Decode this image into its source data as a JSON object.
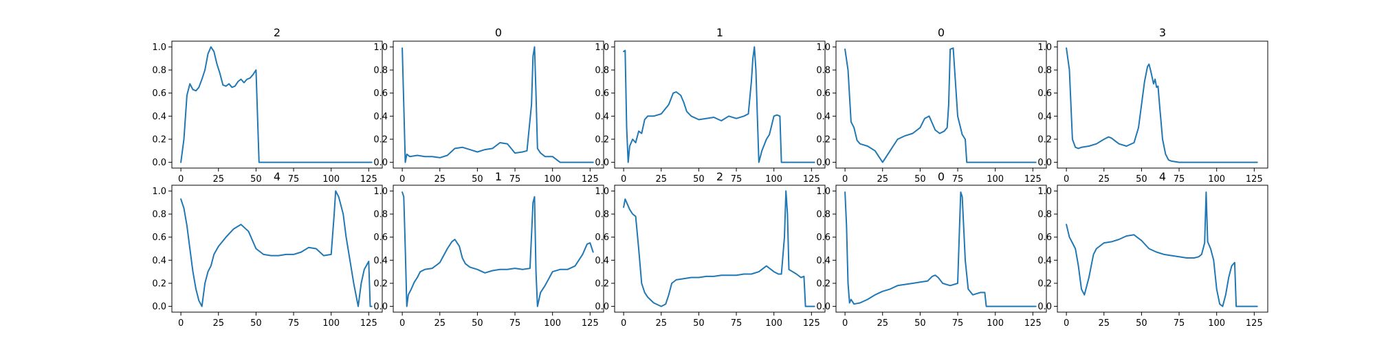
{
  "figure": {
    "line_color": "#1f77b4",
    "background": "#ffffff"
  },
  "chart_data": [
    {
      "type": "line",
      "title": "2",
      "xlim": [
        -6,
        134
      ],
      "ylim": [
        -0.05,
        1.05
      ],
      "xticks": [
        0,
        25,
        50,
        75,
        100,
        125
      ],
      "yticks": [
        0.0,
        0.2,
        0.4,
        0.6,
        0.8,
        1.0
      ],
      "x": [
        0,
        2,
        4,
        6,
        8,
        10,
        12,
        14,
        16,
        18,
        20,
        22,
        24,
        26,
        28,
        30,
        32,
        34,
        36,
        38,
        40,
        42,
        44,
        46,
        48,
        50,
        52,
        53,
        60,
        80,
        100,
        127
      ],
      "y": [
        0.0,
        0.2,
        0.58,
        0.68,
        0.63,
        0.62,
        0.65,
        0.72,
        0.8,
        0.94,
        1.0,
        0.96,
        0.85,
        0.77,
        0.67,
        0.66,
        0.68,
        0.65,
        0.66,
        0.7,
        0.72,
        0.69,
        0.72,
        0.73,
        0.76,
        0.8,
        0.0,
        0.0,
        0.0,
        0.0,
        0.0,
        0.0
      ]
    },
    {
      "type": "line",
      "title": "0",
      "xlim": [
        -6,
        134
      ],
      "ylim": [
        -0.05,
        1.05
      ],
      "xticks": [
        0,
        25,
        50,
        75,
        100,
        125
      ],
      "yticks": [
        0.0,
        0.2,
        0.4,
        0.6,
        0.8,
        1.0
      ],
      "x": [
        0,
        1,
        2,
        3,
        5,
        10,
        15,
        20,
        25,
        30,
        35,
        40,
        45,
        50,
        55,
        60,
        65,
        70,
        75,
        80,
        83,
        86,
        87,
        88,
        89,
        90,
        92,
        95,
        100,
        103,
        105,
        110,
        120,
        127
      ],
      "y": [
        0.99,
        0.5,
        0.0,
        0.07,
        0.05,
        0.06,
        0.05,
        0.05,
        0.04,
        0.06,
        0.12,
        0.13,
        0.11,
        0.09,
        0.11,
        0.12,
        0.17,
        0.16,
        0.08,
        0.09,
        0.1,
        0.5,
        0.92,
        1.0,
        0.6,
        0.12,
        0.08,
        0.05,
        0.05,
        0.02,
        0.0,
        0.0,
        0.0,
        0.0
      ]
    },
    {
      "type": "line",
      "title": "1",
      "xlim": [
        -6,
        134
      ],
      "ylim": [
        -0.05,
        1.05
      ],
      "xticks": [
        0,
        25,
        50,
        75,
        100,
        125
      ],
      "yticks": [
        0.0,
        0.2,
        0.4,
        0.6,
        0.8,
        1.0
      ],
      "x": [
        0,
        1,
        2,
        3,
        4,
        6,
        8,
        10,
        12,
        14,
        16,
        20,
        25,
        30,
        33,
        35,
        38,
        40,
        42,
        45,
        50,
        55,
        60,
        65,
        70,
        75,
        80,
        83,
        85,
        86,
        87,
        88,
        89,
        90,
        92,
        95,
        97,
        100,
        102,
        104,
        105,
        110,
        120,
        127
      ],
      "y": [
        0.96,
        0.97,
        0.3,
        0.0,
        0.14,
        0.2,
        0.17,
        0.27,
        0.25,
        0.37,
        0.4,
        0.4,
        0.42,
        0.5,
        0.6,
        0.61,
        0.58,
        0.52,
        0.44,
        0.4,
        0.37,
        0.38,
        0.39,
        0.36,
        0.4,
        0.38,
        0.4,
        0.42,
        0.7,
        0.9,
        1.0,
        0.8,
        0.4,
        0.0,
        0.1,
        0.2,
        0.24,
        0.4,
        0.41,
        0.4,
        0.0,
        0.0,
        0.0,
        0.0
      ]
    },
    {
      "type": "line",
      "title": "0",
      "xlim": [
        -6,
        134
      ],
      "ylim": [
        -0.05,
        1.05
      ],
      "xticks": [
        0,
        25,
        50,
        75,
        100,
        125
      ],
      "yticks": [
        0.0,
        0.2,
        0.4,
        0.6,
        0.8,
        1.0
      ],
      "x": [
        0,
        2,
        4,
        6,
        8,
        10,
        15,
        20,
        23,
        25,
        27,
        30,
        35,
        40,
        45,
        50,
        53,
        56,
        60,
        63,
        66,
        68,
        69,
        70,
        72,
        75,
        78,
        80,
        81,
        90,
        100,
        110,
        127
      ],
      "y": [
        0.98,
        0.8,
        0.35,
        0.3,
        0.19,
        0.16,
        0.14,
        0.1,
        0.04,
        0.0,
        0.04,
        0.1,
        0.2,
        0.23,
        0.25,
        0.3,
        0.38,
        0.4,
        0.28,
        0.25,
        0.27,
        0.3,
        0.5,
        0.98,
        0.99,
        0.4,
        0.24,
        0.2,
        0.0,
        0.0,
        0.0,
        0.0,
        0.0
      ]
    },
    {
      "type": "line",
      "title": "3",
      "xlim": [
        -6,
        134
      ],
      "ylim": [
        -0.05,
        1.05
      ],
      "xticks": [
        0,
        25,
        50,
        75,
        100,
        125
      ],
      "yticks": [
        0.0,
        0.2,
        0.4,
        0.6,
        0.8,
        1.0
      ],
      "x": [
        0,
        2,
        4,
        6,
        8,
        10,
        15,
        20,
        25,
        28,
        30,
        35,
        40,
        45,
        48,
        50,
        52,
        54,
        55,
        56,
        58,
        59,
        60,
        61,
        62,
        64,
        66,
        68,
        70,
        75,
        80,
        100,
        127
      ],
      "y": [
        0.99,
        0.8,
        0.2,
        0.13,
        0.12,
        0.13,
        0.14,
        0.16,
        0.2,
        0.22,
        0.21,
        0.16,
        0.14,
        0.17,
        0.3,
        0.5,
        0.7,
        0.83,
        0.85,
        0.8,
        0.68,
        0.72,
        0.65,
        0.66,
        0.5,
        0.2,
        0.07,
        0.02,
        0.01,
        0.0,
        0.0,
        0.0,
        0.0
      ]
    },
    {
      "type": "line",
      "title": "4",
      "xlim": [
        -6,
        134
      ],
      "ylim": [
        -0.05,
        1.05
      ],
      "xticks": [
        0,
        25,
        50,
        75,
        100,
        125
      ],
      "yticks": [
        0.0,
        0.2,
        0.4,
        0.6,
        0.8,
        1.0
      ],
      "x": [
        0,
        2,
        4,
        6,
        8,
        10,
        12,
        14,
        16,
        18,
        20,
        22,
        25,
        30,
        35,
        40,
        45,
        50,
        55,
        60,
        65,
        70,
        75,
        80,
        85,
        90,
        95,
        100,
        102,
        103,
        105,
        108,
        110,
        115,
        118,
        120,
        122,
        125,
        126,
        127
      ],
      "y": [
        0.93,
        0.85,
        0.7,
        0.5,
        0.3,
        0.15,
        0.05,
        0.0,
        0.2,
        0.3,
        0.35,
        0.45,
        0.52,
        0.6,
        0.67,
        0.71,
        0.65,
        0.5,
        0.45,
        0.44,
        0.44,
        0.45,
        0.45,
        0.47,
        0.51,
        0.5,
        0.44,
        0.45,
        0.8,
        1.0,
        0.95,
        0.8,
        0.6,
        0.2,
        0.0,
        0.2,
        0.32,
        0.39,
        0.0,
        0.0
      ]
    },
    {
      "type": "line",
      "title": "1",
      "xlim": [
        -6,
        134
      ],
      "ylim": [
        -0.05,
        1.05
      ],
      "xticks": [
        0,
        25,
        50,
        75,
        100,
        125
      ],
      "yticks": [
        0.0,
        0.2,
        0.4,
        0.6,
        0.8,
        1.0
      ],
      "x": [
        0,
        1,
        2,
        3,
        4,
        6,
        8,
        10,
        12,
        15,
        20,
        25,
        30,
        33,
        35,
        38,
        40,
        42,
        45,
        50,
        55,
        60,
        65,
        70,
        75,
        80,
        85,
        87,
        88,
        89,
        90,
        92,
        95,
        100,
        105,
        110,
        115,
        120,
        123,
        125,
        127
      ],
      "y": [
        0.99,
        0.95,
        0.5,
        0.0,
        0.1,
        0.15,
        0.21,
        0.25,
        0.3,
        0.32,
        0.33,
        0.38,
        0.5,
        0.56,
        0.58,
        0.52,
        0.42,
        0.37,
        0.34,
        0.32,
        0.29,
        0.31,
        0.32,
        0.32,
        0.33,
        0.32,
        0.33,
        0.9,
        0.95,
        0.3,
        0.0,
        0.12,
        0.18,
        0.3,
        0.32,
        0.32,
        0.35,
        0.45,
        0.54,
        0.55,
        0.47
      ]
    },
    {
      "type": "line",
      "title": "2",
      "xlim": [
        -6,
        134
      ],
      "ylim": [
        -0.05,
        1.05
      ],
      "xticks": [
        0,
        25,
        50,
        75,
        100,
        125
      ],
      "yticks": [
        0.0,
        0.2,
        0.4,
        0.6,
        0.8,
        1.0
      ],
      "x": [
        0,
        1,
        2,
        4,
        6,
        8,
        10,
        12,
        14,
        16,
        20,
        25,
        28,
        30,
        32,
        35,
        40,
        45,
        50,
        55,
        60,
        65,
        70,
        75,
        80,
        85,
        90,
        95,
        100,
        103,
        105,
        107,
        108,
        109,
        110,
        115,
        118,
        120,
        121,
        125,
        127
      ],
      "y": [
        0.86,
        0.93,
        0.9,
        0.84,
        0.8,
        0.78,
        0.5,
        0.2,
        0.12,
        0.08,
        0.03,
        0.0,
        0.02,
        0.1,
        0.2,
        0.23,
        0.24,
        0.25,
        0.25,
        0.26,
        0.26,
        0.27,
        0.27,
        0.27,
        0.28,
        0.28,
        0.3,
        0.35,
        0.3,
        0.28,
        0.28,
        0.6,
        1.0,
        0.8,
        0.32,
        0.28,
        0.25,
        0.26,
        0.0,
        0.0,
        0.0
      ]
    },
    {
      "type": "line",
      "title": "0",
      "xlim": [
        -6,
        134
      ],
      "ylim": [
        -0.05,
        1.05
      ],
      "xticks": [
        0,
        25,
        50,
        75,
        100,
        125
      ],
      "yticks": [
        0.0,
        0.2,
        0.4,
        0.6,
        0.8,
        1.0
      ],
      "x": [
        0,
        1,
        2,
        3,
        4,
        6,
        10,
        15,
        20,
        25,
        30,
        35,
        40,
        45,
        50,
        55,
        58,
        60,
        62,
        65,
        70,
        75,
        76,
        77,
        78,
        80,
        82,
        85,
        90,
        93,
        94,
        95,
        100,
        110,
        127
      ],
      "y": [
        0.99,
        0.7,
        0.2,
        0.03,
        0.06,
        0.02,
        0.03,
        0.06,
        0.1,
        0.13,
        0.15,
        0.18,
        0.19,
        0.2,
        0.21,
        0.22,
        0.26,
        0.27,
        0.25,
        0.2,
        0.18,
        0.2,
        0.6,
        0.99,
        0.95,
        0.4,
        0.15,
        0.1,
        0.12,
        0.12,
        0.0,
        0.0,
        0.0,
        0.0,
        0.0
      ]
    },
    {
      "type": "line",
      "title": "4",
      "xlim": [
        -6,
        134
      ],
      "ylim": [
        -0.05,
        1.05
      ],
      "xticks": [
        0,
        25,
        50,
        75,
        100,
        125
      ],
      "yticks": [
        0.0,
        0.2,
        0.4,
        0.6,
        0.8,
        1.0
      ],
      "x": [
        0,
        2,
        4,
        6,
        8,
        10,
        12,
        15,
        18,
        20,
        25,
        30,
        35,
        40,
        45,
        50,
        55,
        60,
        65,
        70,
        75,
        80,
        85,
        88,
        90,
        92,
        93,
        94,
        96,
        98,
        100,
        102,
        104,
        106,
        108,
        110,
        112,
        113,
        115,
        120,
        127
      ],
      "y": [
        0.71,
        0.6,
        0.55,
        0.5,
        0.35,
        0.15,
        0.1,
        0.25,
        0.45,
        0.5,
        0.55,
        0.56,
        0.58,
        0.61,
        0.62,
        0.57,
        0.5,
        0.47,
        0.45,
        0.44,
        0.43,
        0.42,
        0.42,
        0.43,
        0.45,
        0.55,
        0.99,
        0.56,
        0.5,
        0.4,
        0.15,
        0.02,
        0.0,
        0.1,
        0.25,
        0.35,
        0.38,
        0.0,
        0.0,
        0.0,
        0.0
      ]
    }
  ]
}
